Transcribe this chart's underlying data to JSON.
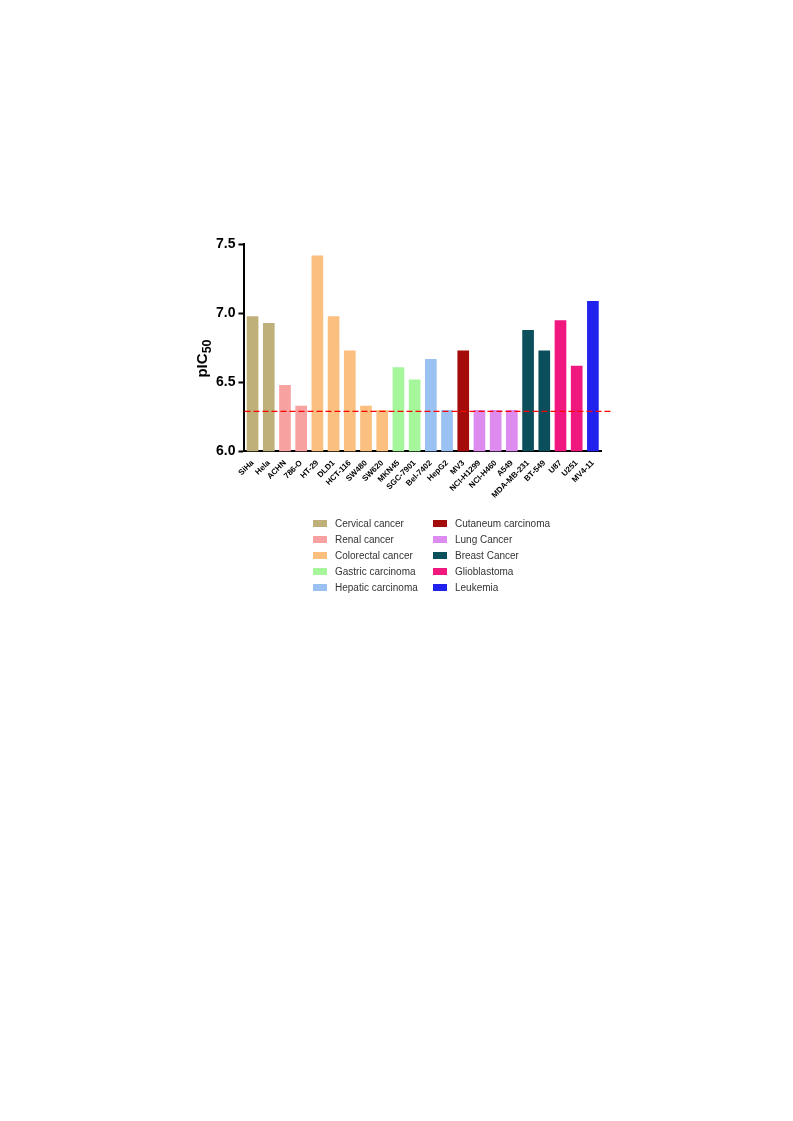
{
  "chart_data": {
    "type": "bar",
    "ylabel": "pIC$_{50}$",
    "categories": [
      "SiHa",
      "Hela",
      "ACHN",
      "786-O",
      "HT-29",
      "DLD1",
      "HCT-116",
      "SW480",
      "SW620",
      "MKN45",
      "SGC-7901",
      "Bel-7402",
      "HepG2",
      "MV3",
      "NCI-H1299",
      "NCI-H460",
      "A549",
      "MDA-MB-231",
      "BT-549",
      "U87",
      "U251",
      "MV4-11"
    ],
    "series": [
      {
        "name": "Cervical cancer",
        "color": "#bfb07a",
        "values": [
          6.98,
          6.93,
          null,
          null,
          null,
          null,
          null,
          null,
          null,
          null,
          null,
          null,
          null,
          null,
          null,
          null,
          null,
          null,
          null,
          null,
          null,
          null
        ]
      },
      {
        "name": "Renal cancer",
        "color": "#f7a1a1",
        "values": [
          null,
          null,
          6.48,
          6.33,
          null,
          null,
          null,
          null,
          null,
          null,
          null,
          null,
          null,
          null,
          null,
          null,
          null,
          null,
          null,
          null,
          null,
          null
        ]
      },
      {
        "name": "Colorectal cancer",
        "color": "#fbbf80",
        "values": [
          null,
          null,
          null,
          null,
          7.42,
          6.98,
          6.73,
          6.33,
          6.3,
          null,
          null,
          null,
          null,
          null,
          null,
          null,
          null,
          null,
          null,
          null,
          null,
          null
        ]
      },
      {
        "name": "Gastric carcinoma",
        "color": "#a6f79b",
        "values": [
          null,
          null,
          null,
          null,
          null,
          null,
          null,
          null,
          null,
          6.61,
          6.52,
          null,
          null,
          null,
          null,
          null,
          null,
          null,
          null,
          null,
          null,
          null
        ]
      },
      {
        "name": "Hepatic carcinoma",
        "color": "#99c2f2",
        "values": [
          null,
          null,
          null,
          null,
          null,
          null,
          null,
          null,
          null,
          null,
          null,
          6.67,
          6.3,
          null,
          null,
          null,
          null,
          null,
          null,
          null,
          null,
          null
        ]
      },
      {
        "name": "Cutaneum carcinoma",
        "color": "#a50b0b",
        "values": [
          null,
          null,
          null,
          null,
          null,
          null,
          null,
          null,
          null,
          null,
          null,
          null,
          null,
          6.73,
          null,
          null,
          null,
          null,
          null,
          null,
          null,
          null
        ]
      },
      {
        "name": "Lung Cancer",
        "color": "#dd8bee",
        "values": [
          null,
          null,
          null,
          null,
          null,
          null,
          null,
          null,
          null,
          null,
          null,
          null,
          null,
          null,
          6.3,
          6.3,
          6.3,
          null,
          null,
          null,
          null,
          null
        ]
      },
      {
        "name": "Breast Cancer",
        "color": "#0b4f5c",
        "values": [
          null,
          null,
          null,
          null,
          null,
          null,
          null,
          null,
          null,
          null,
          null,
          null,
          null,
          null,
          null,
          null,
          null,
          6.88,
          6.73,
          null,
          null,
          null
        ]
      },
      {
        "name": "Glioblastoma",
        "color": "#f0177e",
        "values": [
          null,
          null,
          null,
          null,
          null,
          null,
          null,
          null,
          null,
          null,
          null,
          null,
          null,
          null,
          null,
          null,
          null,
          null,
          null,
          6.95,
          6.62,
          null
        ]
      },
      {
        "name": "Leukemia",
        "color": "#2222ee",
        "values": [
          null,
          null,
          null,
          null,
          null,
          null,
          null,
          null,
          null,
          null,
          null,
          null,
          null,
          null,
          null,
          null,
          null,
          null,
          null,
          null,
          null,
          7.09
        ]
      }
    ],
    "ylim": [
      6.0,
      7.5
    ],
    "yticks": [
      {
        "value": 6.0,
        "label": "6.0"
      },
      {
        "value": 6.5,
        "label": "6.5"
      },
      {
        "value": 7.0,
        "label": "7.0"
      },
      {
        "value": 7.5,
        "label": "7.5"
      }
    ],
    "ref_lines": [
      {
        "axis": "y",
        "value": 6.29,
        "color": "#ff0000",
        "line_style": "dashed"
      }
    ],
    "grid": false,
    "legend": "bottom"
  }
}
